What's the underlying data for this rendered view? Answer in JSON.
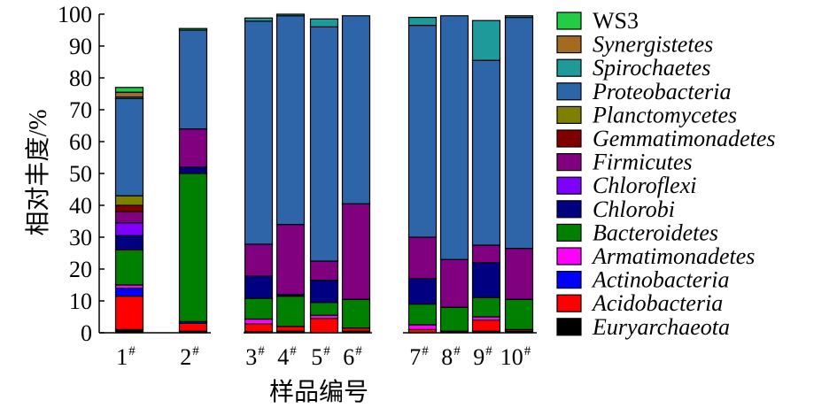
{
  "chart_data": {
    "type": "stacked-bar",
    "xlabel": "样品编号",
    "ylabel": "相对丰度/%",
    "ylim": [
      0,
      100
    ],
    "yticks": [
      0,
      10,
      20,
      30,
      40,
      50,
      60,
      70,
      80,
      90,
      100
    ],
    "categories": [
      {
        "label": "1",
        "sup": "#"
      },
      {
        "label": "2",
        "sup": "#"
      },
      {
        "label": "3",
        "sup": "#"
      },
      {
        "label": "4",
        "sup": "#"
      },
      {
        "label": "5",
        "sup": "#"
      },
      {
        "label": "6",
        "sup": "#"
      },
      {
        "label": "7",
        "sup": "#"
      },
      {
        "label": "8",
        "sup": "#"
      },
      {
        "label": "9",
        "sup": "#"
      },
      {
        "label": "10",
        "sup": "#"
      }
    ],
    "grid": false,
    "legend_position": "right",
    "series": [
      {
        "name": "Euryarchaeota",
        "color": "#000000",
        "values": [
          1,
          0.5,
          0.3,
          0.5,
          0,
          0.5,
          0,
          0.5,
          0.5,
          0.5
        ]
      },
      {
        "name": "Acidobacteria",
        "color": "#ff0000",
        "values": [
          10.5,
          2.5,
          2.5,
          1.5,
          4.5,
          1,
          1,
          0,
          3.5,
          0.5
        ]
      },
      {
        "name": "Actinobacteria",
        "color": "#0000ff",
        "values": [
          2.5,
          0.5,
          0,
          0,
          0,
          0,
          0,
          0,
          0,
          0
        ]
      },
      {
        "name": "Armatimonadetes",
        "color": "#ff00ff",
        "values": [
          1,
          0,
          1.5,
          0,
          1,
          0,
          1.5,
          0,
          1,
          0
        ]
      },
      {
        "name": "Bacteroidetes",
        "color": "#008000",
        "values": [
          11,
          46.5,
          6.5,
          9.5,
          4,
          9,
          6.5,
          7.5,
          6,
          9.5
        ]
      },
      {
        "name": "Chlorobi",
        "color": "#000080",
        "values": [
          4.5,
          2,
          7,
          0.5,
          7,
          0,
          8,
          0,
          11,
          0
        ]
      },
      {
        "name": "Chloroflexi",
        "color": "#8000ff",
        "values": [
          4,
          0,
          0,
          0,
          0,
          0,
          0,
          0,
          0,
          0
        ]
      },
      {
        "name": "Firmicutes",
        "color": "#800080",
        "values": [
          3.5,
          12,
          10,
          22,
          6,
          30,
          13,
          15,
          5.5,
          16
        ]
      },
      {
        "name": "Gemmatimonadetes",
        "color": "#800000",
        "values": [
          2,
          0,
          0,
          0,
          0,
          0,
          0,
          0,
          0,
          0
        ]
      },
      {
        "name": "Planctomycetes",
        "color": "#808000",
        "values": [
          3,
          0,
          0,
          0,
          0,
          0,
          0,
          0,
          0,
          0
        ]
      },
      {
        "name": "Proteobacteria",
        "color": "#2e64a8",
        "values": [
          30.5,
          31,
          70,
          65.5,
          73.5,
          59,
          66.5,
          76.5,
          58,
          72.5
        ]
      },
      {
        "name": "Spirochaetes",
        "color": "#1e9a9a",
        "values": [
          0.5,
          0,
          1,
          0.5,
          2.5,
          0,
          2.5,
          0,
          12.5,
          0.5
        ]
      },
      {
        "name": "Synergistetes",
        "color": "#a36b20",
        "values": [
          1.5,
          0,
          0,
          0,
          0,
          0,
          0,
          0,
          0,
          0
        ]
      },
      {
        "name": "WS3",
        "color": "#22cc44",
        "values": [
          1.5,
          0.5,
          0,
          0,
          0,
          0,
          0,
          0,
          0,
          0
        ]
      }
    ],
    "legend_order": [
      "WS3",
      "Synergistetes",
      "Spirochaetes",
      "Proteobacteria",
      "Planctomycetes",
      "Gemmatimonadetes",
      "Firmicutes",
      "Chloroflexi",
      "Chlorobi",
      "Bacteroidetes",
      "Armatimonadetes",
      "Actinobacteria",
      "Acidobacteria",
      "Euryarchaeota"
    ],
    "upright_legend_names": [
      "WS3"
    ]
  }
}
